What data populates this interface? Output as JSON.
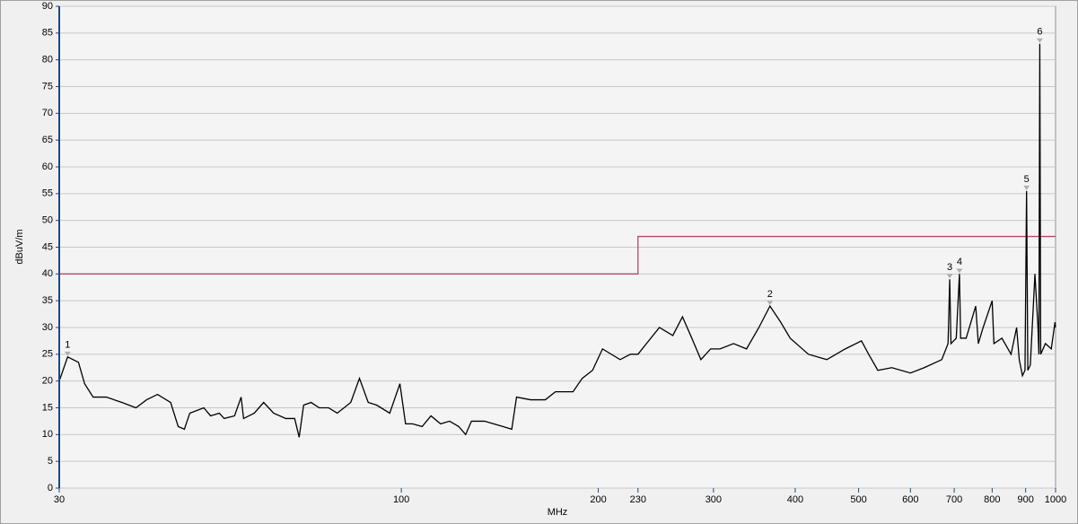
{
  "chart_data": {
    "type": "line",
    "x_label": "MHz",
    "y_label": "dBuV/m",
    "xscale": "log",
    "xlim": [
      30,
      1000
    ],
    "ylim": [
      0,
      90
    ],
    "grid": true,
    "xticks": [
      30,
      100,
      200,
      230,
      300,
      400,
      500,
      600,
      700,
      800,
      900,
      1000
    ],
    "yticks": [
      0,
      5,
      10,
      15,
      20,
      25,
      30,
      35,
      40,
      45,
      50,
      55,
      60,
      65,
      70,
      75,
      80,
      85,
      90
    ],
    "series": [
      {
        "color": "#b04a68",
        "x": [
          30,
          230,
          230,
          1000
        ],
        "values": [
          40,
          40,
          47,
          47
        ]
      },
      {
        "color": "#000000",
        "x": [
          30,
          30.9,
          32.1,
          32.8,
          33.8,
          35.4,
          37.4,
          39.3,
          40.8,
          42.4,
          44.4,
          45.6,
          46.6,
          47.5,
          49.9,
          51.1,
          52.7,
          53.6,
          55.6,
          56.9,
          57.4,
          59.6,
          61.6,
          63.8,
          66.6,
          68.7,
          69.8,
          70.9,
          72.8,
          74.9,
          77.4,
          79.8,
          83.7,
          86.3,
          89,
          91.7,
          96,
          99.5,
          101.5,
          104,
          107.6,
          111,
          114.8,
          118.5,
          122.4,
          125.4,
          128,
          134,
          143,
          147.5,
          150,
          157.6,
          166,
          172,
          183,
          189,
          196,
          203,
          216,
          224,
          230,
          237,
          248,
          260,
          269,
          278,
          287,
          297,
          307,
          322,
          337,
          352,
          366,
          380,
          393,
          419,
          447,
          477,
          505,
          518,
          535,
          562,
          600,
          630,
          670,
          685,
          689,
          692,
          705,
          713,
          716,
          730,
          755,
          762,
          775,
          800,
          805,
          828,
          855,
          872,
          880,
          890,
          898,
          903,
          907,
          915,
          930,
          940,
          943,
          946,
          949,
          965,
          985,
          998,
          1000
        ],
        "values": [
          20,
          24.5,
          23.5,
          19.5,
          17,
          17,
          16,
          15,
          16.5,
          17.5,
          16,
          11.5,
          11,
          14,
          15,
          13.5,
          14,
          13,
          13.5,
          17,
          13,
          14,
          16,
          14,
          13,
          13,
          9.5,
          15.5,
          16,
          15,
          15,
          14,
          16,
          20.5,
          16,
          15.5,
          14,
          19.5,
          12,
          12,
          11.5,
          13.5,
          12,
          12.5,
          11.5,
          10,
          12.5,
          12.5,
          11.5,
          11,
          17,
          16.5,
          16.5,
          18,
          18,
          20.5,
          22,
          26,
          24,
          25,
          25,
          27,
          30,
          28.5,
          32,
          28,
          24,
          26,
          26,
          27,
          26,
          30,
          34,
          31,
          28,
          25,
          24,
          26,
          27.5,
          25,
          22,
          22.5,
          21.5,
          22.5,
          24,
          27,
          39,
          27,
          28,
          40,
          28,
          28,
          34,
          27,
          30,
          35,
          27,
          28,
          25,
          30,
          24,
          21,
          22,
          55.5,
          22,
          23,
          40,
          30,
          25,
          83,
          25,
          27,
          26,
          31,
          30
        ]
      }
    ],
    "markers": {
      "labels": [
        "1",
        "2",
        "3",
        "4",
        "5",
        "6"
      ],
      "x": [
        30.9,
        366,
        689,
        713,
        903,
        946
      ],
      "values": [
        24.5,
        34,
        39,
        40,
        55.5,
        83
      ]
    }
  }
}
